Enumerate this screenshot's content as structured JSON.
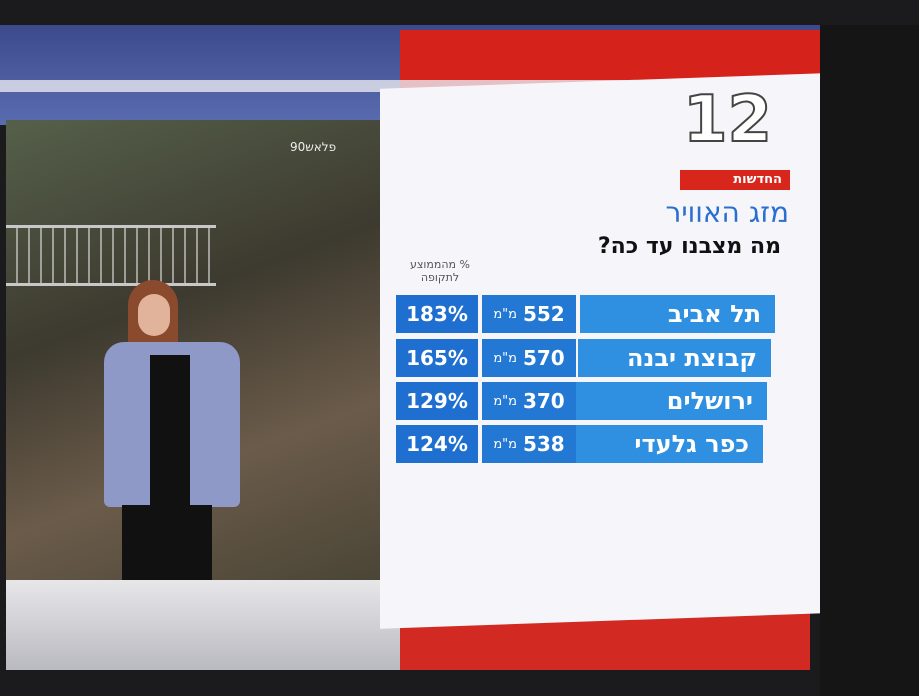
{
  "watermark": "פלאש90",
  "logo": {
    "number": "12",
    "label": "החדשות"
  },
  "title": "מזג האוויר",
  "subtitle": "מה מצבנו עד כה?",
  "table": {
    "header": "% מהממוצע לתקופה",
    "rows": [
      {
        "city": "תל אביב",
        "amount": "552",
        "unit": "מ\"מ",
        "percent": "183%"
      },
      {
        "city": "קבוצת יבנה",
        "amount": "570",
        "unit": "מ\"מ",
        "percent": "165%"
      },
      {
        "city": "ירושלים",
        "amount": "370",
        "unit": "מ\"מ",
        "percent": "129%"
      },
      {
        "city": "כפר גלעדי",
        "amount": "538",
        "unit": "מ\"מ",
        "percent": "124%"
      }
    ]
  }
}
